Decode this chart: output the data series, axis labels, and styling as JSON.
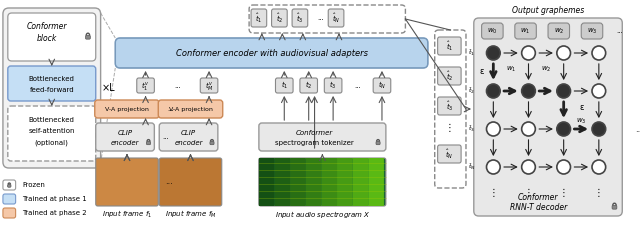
{
  "figsize": [
    6.4,
    2.35
  ],
  "dpi": 100,
  "bg_color": "#ffffff",
  "colors": {
    "light_gray": "#e8e8e8",
    "blue_light": "#c5dff5",
    "blue_hatch": "#b8d4ed",
    "orange_light": "#f5c8a8",
    "gray_box": "#d8d8d8",
    "box_border": "#999999",
    "dark_node": "#404040",
    "outer_box": "#f0f0f0"
  },
  "legend": {
    "frozen_label": "Frozen",
    "phase1_label": "Trained at phase 1",
    "phase2_label": "Trained at phase 2",
    "phase1_color": "#c5dff5",
    "phase2_color": "#f5c8a8"
  },
  "main_panel": {
    "encoder_label": "Conformer encoder with audiovisual adapters",
    "frame1_label": "Input frame $f_1$",
    "frameM_label": "Input frame $f_M$",
    "audio_label": "Input audio spectrogram $X$"
  },
  "right_panel": {
    "title": "Output graphemes",
    "decoder_label1": "Conformer",
    "decoder_label2": "RNN-T decoder",
    "graphemes": [
      "$w_0$",
      "$w_1$",
      "$w_2$",
      "$w_3$",
      "..."
    ]
  }
}
